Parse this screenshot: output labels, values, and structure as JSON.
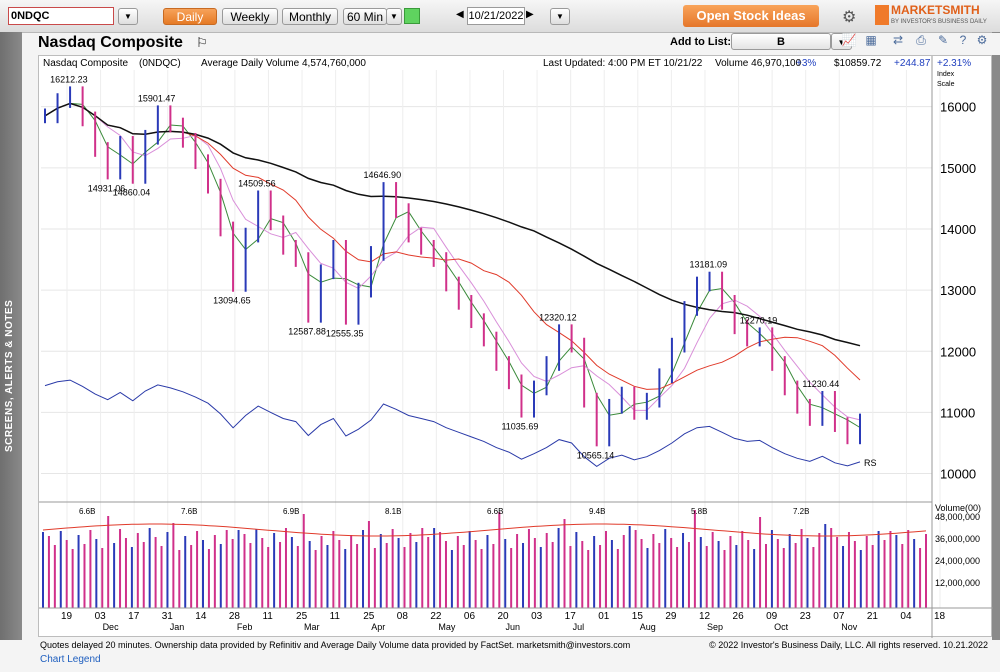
{
  "toolbar": {
    "symbol": "0NDQC",
    "daily": "Daily",
    "weekly": "Weekly",
    "monthly": "Monthly",
    "interval": "60 Min",
    "date": "10/21/2022",
    "open_stock_ideas": "Open Stock Ideas",
    "brand": "MARKETSMITH",
    "brand_sub": "BY INVESTOR'S BUSINESS DAILY"
  },
  "header": {
    "title": "Nasdaq Composite",
    "add_to_list_label": "Add to List:",
    "list_value": "B"
  },
  "sidebar": {
    "label": "SCREENS, ALERTS & NOTES"
  },
  "infobar": {
    "name": "Nasdaq Composite",
    "symbol": "(0NDQC)",
    "avg_volume": "Average Daily Volume 4,574,760,000",
    "last_updated": "Last Updated: 4:00 PM ET 10/21/22",
    "volume": "Volume 46,970,100",
    "vol_change": "+3%",
    "price": "$10859.72",
    "change": "+244.87",
    "change_pct": "+2.31%",
    "scale_label1": "Index",
    "scale_label2": "Scale"
  },
  "colors": {
    "green": "#3a8a3a",
    "pink": "#d98fd9",
    "red": "#e03a2a",
    "black": "#111111",
    "rs_blue": "#2a3aa8",
    "up_bar": "#2a3ab8",
    "down_bar": "#d0308a"
  },
  "chart_data": {
    "type": "line",
    "y_range": [
      9600,
      16600
    ],
    "y_ticks": [
      "16000",
      "15000",
      "14000",
      "13000",
      "12000",
      "11000",
      "10000"
    ],
    "vol_ticks": [
      "48,000,000",
      "36,000,000",
      "24,000,000",
      "12,000,000"
    ],
    "volume_label": "Volume(00)",
    "x_ticks": [
      {
        "day": "19",
        "month": ""
      },
      {
        "day": "03",
        "month": "Dec"
      },
      {
        "day": "17",
        "month": ""
      },
      {
        "day": "31",
        "month": "Jan"
      },
      {
        "day": "14",
        "month": ""
      },
      {
        "day": "28",
        "month": "Feb"
      },
      {
        "day": "11",
        "month": ""
      },
      {
        "day": "25",
        "month": "Mar"
      },
      {
        "day": "11",
        "month": ""
      },
      {
        "day": "25",
        "month": "Apr"
      },
      {
        "day": "08",
        "month": ""
      },
      {
        "day": "22",
        "month": "May"
      },
      {
        "day": "06",
        "month": ""
      },
      {
        "day": "20",
        "month": "Jun"
      },
      {
        "day": "03",
        "month": ""
      },
      {
        "day": "17",
        "month": "Jul"
      },
      {
        "day": "01",
        "month": ""
      },
      {
        "day": "15",
        "month": "Aug"
      },
      {
        "day": "29",
        "month": ""
      },
      {
        "day": "12",
        "month": "Sep"
      },
      {
        "day": "26",
        "month": ""
      },
      {
        "day": "09",
        "month": "Oct"
      },
      {
        "day": "23",
        "month": ""
      },
      {
        "day": "07",
        "month": "Nov"
      },
      {
        "day": "21",
        "month": ""
      },
      {
        "day": "04",
        "month": ""
      },
      {
        "day": "18",
        "month": ""
      }
    ],
    "annotations": [
      "16212.23",
      "15901.47",
      "14931.06",
      "14860.04",
      "14509.56",
      "13094.65",
      "12587.88",
      "12555.35",
      "14646.90",
      "12320.12",
      "11035.69",
      "10565.14",
      "13181.09",
      "12270.19",
      "11230.44"
    ],
    "vol_annotations": [
      "6.6B",
      "7.6B",
      "6.9B",
      "8.1B",
      "6.6B",
      "9.4B",
      "5.8B",
      "7.2B"
    ],
    "rs_label": "RS",
    "closes": [
      15850,
      16100,
      16212,
      15800,
      15300,
      14931,
      15400,
      14860,
      15500,
      15901,
      15700,
      15450,
      15100,
      14700,
      14000,
      13094,
      13900,
      14509,
      14100,
      13700,
      13500,
      12588,
      13300,
      13700,
      12555,
      13000,
      13600,
      14647,
      14300,
      13900,
      13700,
      13500,
      13100,
      12800,
      12500,
      12200,
      11800,
      11500,
      11036,
      11400,
      11800,
      12320,
      12100,
      11200,
      10565,
      11100,
      11300,
      11000,
      11200,
      11600,
      12100,
      12700,
      13100,
      13181,
      12800,
      12400,
      12200,
      12270,
      11800,
      11400,
      11100,
      10900,
      11230,
      10800,
      10600,
      10860
    ]
  },
  "footer": {
    "left": "Quotes delayed 20 minutes. Ownership data provided by Refinitiv and Average Daily Volume data provided by FactSet. marketsmith@investors.com",
    "right": "© 2022 Investor's Business Daily, LLC. All rights reserved.   10.21.2022",
    "legend": "Chart Legend"
  }
}
